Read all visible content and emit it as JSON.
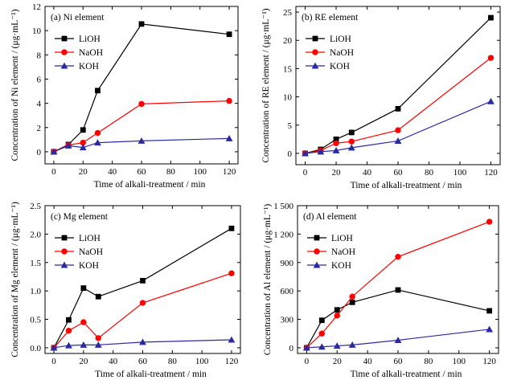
{
  "chart_data": [
    {
      "type": "line",
      "title": "(a) Ni element",
      "xlabel": "Time of alkali-treatment / min",
      "ylabel": "Concentration of Ni element / (μg·mL⁻¹)",
      "xlim": [
        -6,
        126
      ],
      "ylim": [
        -1,
        12
      ],
      "xticks": [
        0,
        20,
        40,
        60,
        80,
        100,
        120
      ],
      "yticks": [
        0,
        2,
        4,
        6,
        8,
        10,
        12
      ],
      "ytick_labels": [
        "0",
        "2",
        "4",
        "6",
        "8",
        "10",
        "12"
      ],
      "legend_position": "upper-left",
      "x": [
        0,
        10,
        20,
        30,
        60,
        120
      ],
      "series": [
        {
          "name": "LiOH",
          "color": "#000000",
          "marker": "square",
          "values": [
            0,
            0.6,
            1.8,
            5.05,
            10.55,
            9.7
          ]
        },
        {
          "name": "NaOH",
          "color": "#ff0000",
          "marker": "circle",
          "values": [
            0,
            0.55,
            0.75,
            1.55,
            3.95,
            4.2
          ]
        },
        {
          "name": "KOH",
          "color": "#2a2aa0",
          "marker": "triangle",
          "values": [
            0,
            0.5,
            0.35,
            0.75,
            0.9,
            1.1
          ]
        }
      ]
    },
    {
      "type": "line",
      "title": "(b) RE element",
      "xlabel": "Time of alkali-treatment / min",
      "ylabel": "Concentration of RE element / (μg·mL⁻¹)",
      "xlim": [
        -6,
        126
      ],
      "ylim": [
        -2,
        26
      ],
      "xticks": [
        0,
        20,
        40,
        60,
        80,
        100,
        120
      ],
      "yticks": [
        0,
        5,
        10,
        15,
        20,
        25
      ],
      "ytick_labels": [
        "0",
        "5",
        "10",
        "15",
        "20",
        "25"
      ],
      "legend_position": "upper-left",
      "x": [
        0,
        10,
        20,
        30,
        60,
        120
      ],
      "series": [
        {
          "name": "LiOH",
          "color": "#000000",
          "marker": "square",
          "values": [
            0,
            0.7,
            2.5,
            3.7,
            7.9,
            24
          ]
        },
        {
          "name": "NaOH",
          "color": "#ff0000",
          "marker": "circle",
          "values": [
            0,
            0.5,
            1.8,
            2.1,
            4.1,
            16.9
          ]
        },
        {
          "name": "KOH",
          "color": "#2a2aa0",
          "marker": "triangle",
          "values": [
            0,
            0.3,
            0.5,
            1.0,
            2.2,
            9.2
          ]
        }
      ]
    },
    {
      "type": "line",
      "title": "(c) Mg element",
      "xlabel": "Time of alkali-treatment / min",
      "ylabel": "Concentration of Mg element / (μg·mL⁻¹)",
      "xlim": [
        -6,
        126
      ],
      "ylim": [
        -0.1,
        2.5
      ],
      "xticks": [
        0,
        20,
        40,
        60,
        80,
        100,
        120
      ],
      "yticks": [
        0,
        0.5,
        1.0,
        1.5,
        2.0,
        2.5
      ],
      "ytick_labels": [
        "0.0",
        "0.5",
        "1.0",
        "1.5",
        "2.0",
        "2.5"
      ],
      "legend_position": "upper-left",
      "x": [
        0,
        10,
        20,
        30,
        60,
        120
      ],
      "series": [
        {
          "name": "LiOH",
          "color": "#000000",
          "marker": "square",
          "values": [
            0,
            0.49,
            1.05,
            0.9,
            1.18,
            2.1
          ]
        },
        {
          "name": "NaOH",
          "color": "#ff0000",
          "marker": "circle",
          "values": [
            0,
            0.3,
            0.45,
            0.17,
            0.79,
            1.31
          ]
        },
        {
          "name": "KOH",
          "color": "#2a2aa0",
          "marker": "triangle",
          "values": [
            0,
            0.04,
            0.05,
            0.05,
            0.1,
            0.14
          ]
        }
      ]
    },
    {
      "type": "line",
      "title": "(d) Al element",
      "xlabel": "Time of alkali-treatment / min",
      "ylabel": "Concentration of Al element / (μg·mL⁻¹)",
      "xlim": [
        -6,
        126
      ],
      "ylim": [
        -60,
        1500
      ],
      "xticks": [
        0,
        20,
        40,
        60,
        80,
        100,
        120
      ],
      "yticks": [
        0,
        300,
        600,
        900,
        1200,
        1500
      ],
      "ytick_labels": [
        "0",
        "300",
        "600",
        "900",
        "1 200",
        "1 500"
      ],
      "legend_position": "upper-left",
      "x": [
        0,
        10,
        20,
        30,
        60,
        120
      ],
      "series": [
        {
          "name": "LiOH",
          "color": "#000000",
          "marker": "square",
          "values": [
            0,
            290,
            400,
            480,
            610,
            390
          ]
        },
        {
          "name": "NaOH",
          "color": "#ff0000",
          "marker": "circle",
          "values": [
            0,
            150,
            340,
            540,
            960,
            1330
          ]
        },
        {
          "name": "KOH",
          "color": "#2a2aa0",
          "marker": "triangle",
          "values": [
            0,
            10,
            20,
            30,
            80,
            195
          ]
        }
      ]
    }
  ]
}
